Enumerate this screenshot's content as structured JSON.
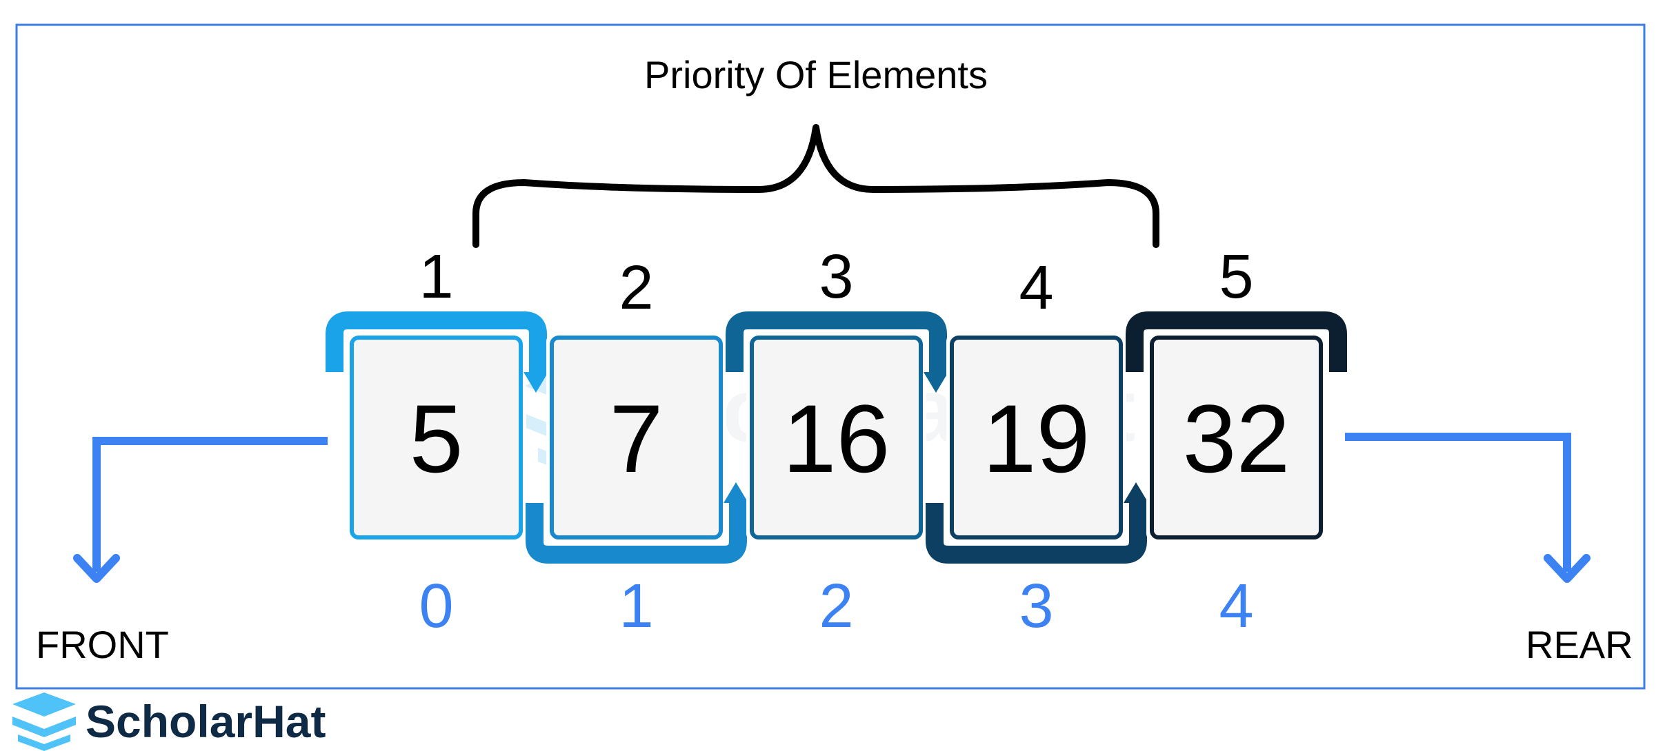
{
  "title": "Priority Of Elements",
  "front_label": "FRONT",
  "rear_label": "REAR",
  "watermark": "ScholarHat",
  "logo_text": "ScholarHat",
  "elements": [
    {
      "value": "5",
      "priority": "1",
      "index": "0",
      "color": "#1aa3e8"
    },
    {
      "value": "7",
      "priority": "2",
      "index": "1",
      "color": "#1789cc"
    },
    {
      "value": "16",
      "priority": "3",
      "index": "2",
      "color": "#0f6696"
    },
    {
      "value": "19",
      "priority": "4",
      "index": "3",
      "color": "#0d3f63"
    },
    {
      "value": "32",
      "priority": "5",
      "index": "4",
      "color": "#0b1f30"
    }
  ],
  "colors": {
    "frame": "#3c7ee0",
    "pointer": "#3d82f2",
    "index_text": "#3d82f2",
    "logo_light": "#4fc3f7",
    "logo_dark": "#0f2a45"
  }
}
